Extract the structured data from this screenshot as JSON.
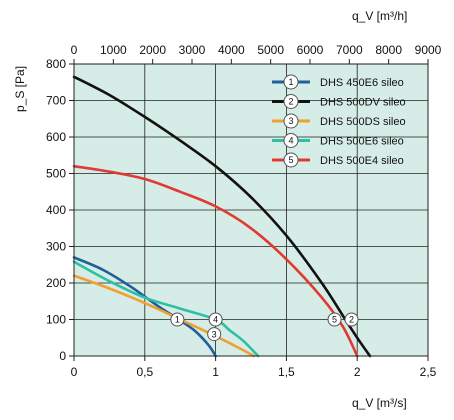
{
  "chart_data": {
    "type": "line",
    "title": "",
    "xlabel": "q_V [m³/s]",
    "x2label": "q_V [m³/h]",
    "ylabel": "p_S [Pa]",
    "xlim": [
      0,
      2.5
    ],
    "x2lim": [
      0,
      9000
    ],
    "ylim": [
      0,
      800
    ],
    "xticks": [
      0,
      0.5,
      1,
      1.5,
      2,
      2.5
    ],
    "xtick_labels": [
      "0",
      "0,5",
      "1",
      "1,5",
      "2",
      "2,5"
    ],
    "x2ticks": [
      0,
      1000,
      2000,
      3000,
      4000,
      5000,
      6000,
      7000,
      8000,
      9000
    ],
    "yticks": [
      0,
      100,
      200,
      300,
      400,
      500,
      600,
      700,
      800
    ],
    "grid": true,
    "background": "#d6ece6",
    "legend_position": "top-right",
    "series": [
      {
        "id": "1",
        "name": "DHS 450E6 sileo",
        "color": "#1f5f9a",
        "x": [
          0,
          0.2,
          0.4,
          0.6,
          0.74,
          0.85,
          0.95,
          1.0
        ],
        "y": [
          270,
          237,
          190,
          135,
          100,
          70,
          30,
          0
        ],
        "marker": {
          "x": 0.73,
          "y": 100
        }
      },
      {
        "id": "2",
        "name": "DHS 500DV sileo",
        "color": "#111111",
        "x": [
          0,
          0.25,
          0.5,
          0.75,
          1.0,
          1.25,
          1.5,
          1.75,
          1.9,
          2.0,
          2.09
        ],
        "y": [
          765,
          715,
          655,
          590,
          520,
          435,
          330,
          200,
          110,
          50,
          0
        ],
        "marker": {
          "x": 1.96,
          "y": 100
        }
      },
      {
        "id": "3",
        "name": "DHS 500DS sileo",
        "color": "#f0a030",
        "x": [
          0,
          0.25,
          0.5,
          0.75,
          0.97,
          1.1,
          1.2,
          1.27
        ],
        "y": [
          220,
          185,
          145,
          100,
          60,
          35,
          15,
          0
        ],
        "marker": {
          "x": 0.99,
          "y": 60
        }
      },
      {
        "id": "4",
        "name": "DHS 500E6 sileo",
        "color": "#2fbfa6",
        "x": [
          0,
          0.25,
          0.5,
          0.75,
          1.0,
          1.1,
          1.2,
          1.3
        ],
        "y": [
          258,
          205,
          160,
          130,
          100,
          70,
          40,
          0
        ],
        "marker": {
          "x": 1.0,
          "y": 100
        }
      },
      {
        "id": "5",
        "name": "DHS 500E4 sileo",
        "color": "#e03a32",
        "x": [
          0,
          0.25,
          0.5,
          0.75,
          1.0,
          1.25,
          1.5,
          1.75,
          1.9,
          2.0
        ],
        "y": [
          520,
          505,
          485,
          450,
          410,
          350,
          265,
          160,
          80,
          0
        ],
        "marker": {
          "x": 1.84,
          "y": 100
        }
      }
    ]
  }
}
